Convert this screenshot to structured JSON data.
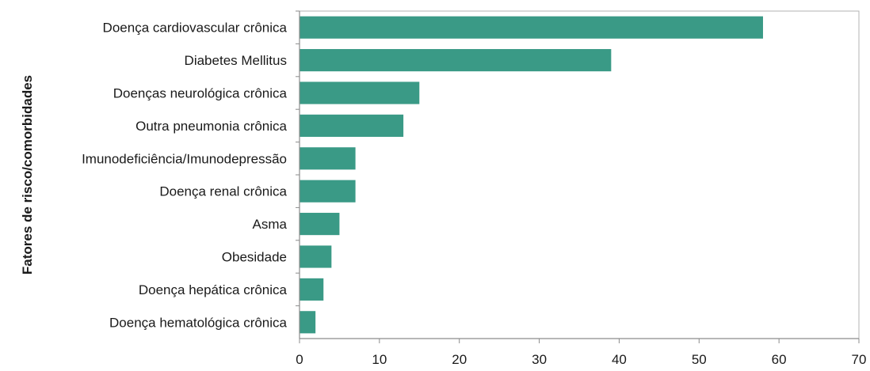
{
  "chart_data": {
    "type": "bar",
    "orientation": "horizontal",
    "title": "",
    "xlabel": "",
    "ylabel": "Fatores de risco/comorbidades",
    "categories": [
      "Doença cardiovascular crônica",
      "Diabetes Mellitus",
      "Doenças neurológica crônica",
      "Outra pneumonia crônica",
      "Imunodeficiência/Imunodepressão",
      "Doença renal crônica",
      "Asma",
      "Obesidade",
      "Doença hepática crônica",
      "Doença hematológica crônica"
    ],
    "values": [
      58,
      39,
      15,
      13,
      7,
      7,
      5,
      4,
      3,
      2
    ],
    "xlim": [
      0,
      70
    ],
    "xticks": [
      0,
      10,
      20,
      30,
      40,
      50,
      60,
      70
    ],
    "grid": false,
    "legend": "none",
    "bar_color": "#3a9a86"
  }
}
